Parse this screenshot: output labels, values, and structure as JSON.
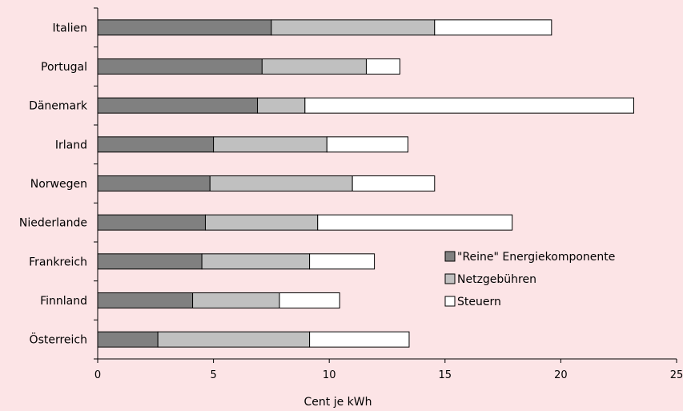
{
  "chart_data": {
    "type": "bar",
    "orientation": "horizontal",
    "stacked": true,
    "title": "",
    "xlabel": "Cent je kWh",
    "ylabel": "",
    "xlim": [
      0,
      25
    ],
    "x_ticks": [
      0,
      5,
      10,
      15,
      20,
      25
    ],
    "grid": false,
    "legend_position": "lower-right",
    "categories": [
      "Italien",
      "Portugal",
      "Dänemark",
      "Irland",
      "Norwegen",
      "Niederlande",
      "Frankreich",
      "Finnland",
      "Österreich"
    ],
    "series": [
      {
        "name": "\"Reine\" Energiekomponente",
        "color": "#808080",
        "values": [
          7.5,
          7.1,
          6.9,
          5.0,
          4.85,
          4.65,
          4.5,
          4.1,
          2.6
        ]
      },
      {
        "name": "Netzgebühren",
        "color": "#c0c0c0",
        "values": [
          7.05,
          4.5,
          2.05,
          4.9,
          6.15,
          4.85,
          4.65,
          3.75,
          6.55
        ]
      },
      {
        "name": "Steuern",
        "color": "#ffffff",
        "values": [
          5.05,
          1.45,
          14.2,
          3.5,
          3.55,
          8.4,
          2.8,
          2.6,
          4.3
        ]
      }
    ]
  }
}
